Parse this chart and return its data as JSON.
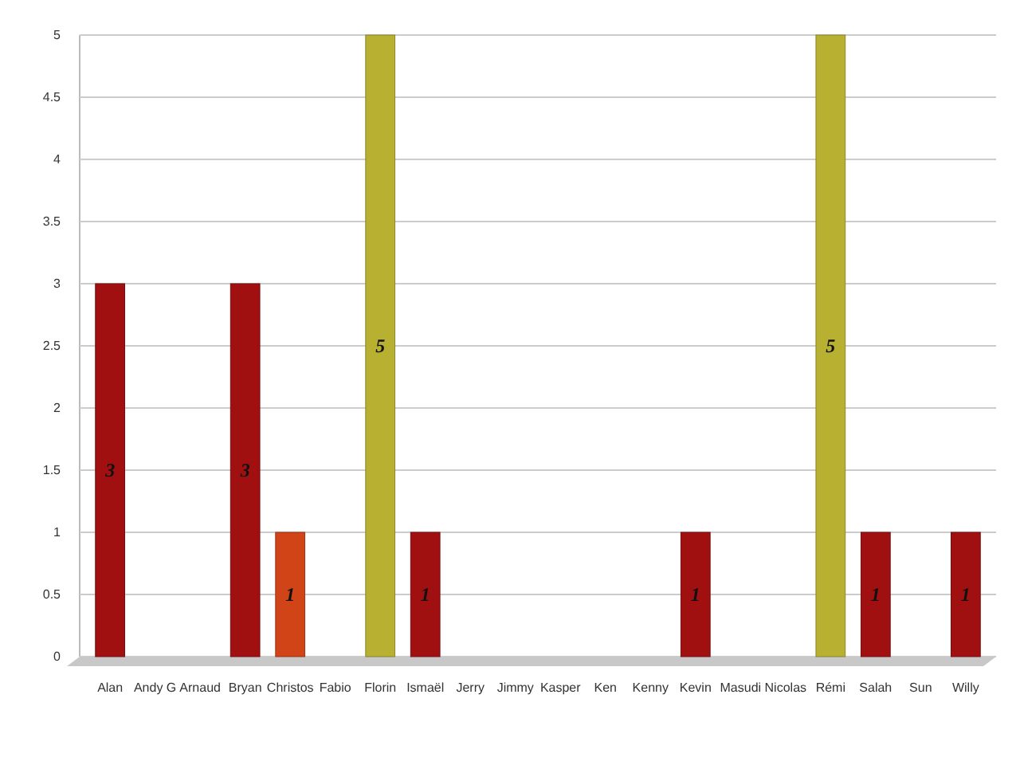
{
  "chart_data": {
    "type": "bar",
    "categories": [
      "Alan",
      "Andy G",
      "Arnaud",
      "Bryan",
      "Christos",
      "Fabio",
      "Florin",
      "Ismaël",
      "Jerry",
      "Jimmy",
      "Kasper",
      "Ken",
      "Kenny",
      "Kevin",
      "Masudi",
      "Nicolas",
      "Rémi",
      "Salah",
      "Sun",
      "Willy"
    ],
    "values": [
      3,
      0,
      0,
      3,
      1,
      0,
      5,
      1,
      0,
      0,
      0,
      0,
      0,
      1,
      0,
      0,
      5,
      1,
      0,
      1
    ],
    "colors": [
      "#a01010",
      "#a01010",
      "#a01010",
      "#a01010",
      "#d04418",
      "#a01010",
      "#b8b030",
      "#a01010",
      "#a01010",
      "#a01010",
      "#a01010",
      "#a01010",
      "#a01010",
      "#a01010",
      "#a01010",
      "#a01010",
      "#b8b030",
      "#a01010",
      "#a01010",
      "#a01010"
    ],
    "value_labels": [
      "3",
      null,
      null,
      "3",
      "1",
      null,
      "5",
      "1",
      null,
      null,
      null,
      null,
      null,
      "1",
      null,
      null,
      "5",
      "1",
      null,
      "1"
    ],
    "ylim": [
      0,
      5
    ],
    "yticks": [
      0,
      0.5,
      1,
      1.5,
      2,
      2.5,
      3,
      3.5,
      4,
      4.5,
      5
    ],
    "grid": "y"
  }
}
